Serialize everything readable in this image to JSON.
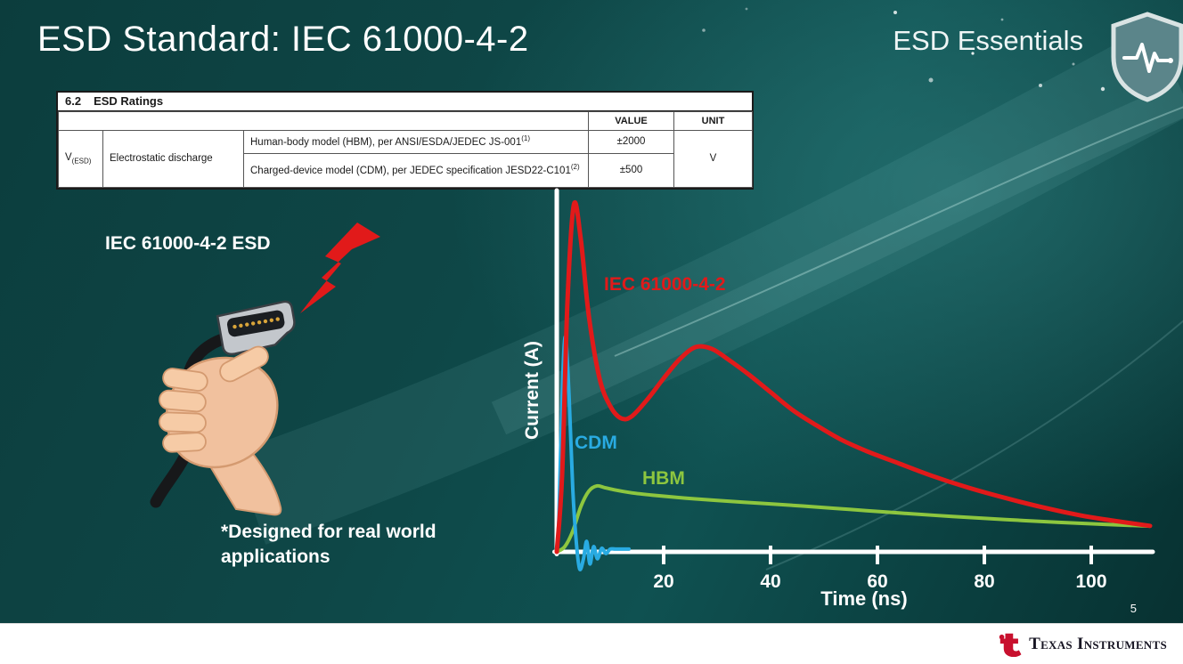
{
  "slide": {
    "title": "ESD Standard: IEC 61000-4-2",
    "program": "ESD Essentials",
    "page_number": "5"
  },
  "ratings_table": {
    "section_number": "6.2",
    "section_title": "ESD Ratings",
    "col_value": "VALUE",
    "col_unit": "UNIT",
    "param_symbol": "V",
    "param_subscript": "(ESD)",
    "param_name": "Electrostatic discharge",
    "rows": [
      {
        "description": "Human-body model (HBM), per ANSI/ESDA/JEDEC JS-001",
        "ref": "(1)",
        "value": "±2000"
      },
      {
        "description": "Charged-device model (CDM), per JEDEC specification JESD22-C101",
        "ref": "(2)",
        "value": "±500"
      }
    ],
    "unit": "V"
  },
  "illustration": {
    "label": "IEC 61000-4-2 ESD",
    "footnote": "*Designed for real world applications"
  },
  "chart_data": {
    "type": "line",
    "title": "",
    "xlabel": "Time (ns)",
    "ylabel": "Current (A)",
    "xlim": [
      0,
      112
    ],
    "ylim": [
      -0.08,
      1.05
    ],
    "xticks": [
      20,
      40,
      60,
      80,
      100
    ],
    "yticks": [],
    "grid": false,
    "legend": "inline-labels",
    "axis_color": "#ffffff",
    "series": [
      {
        "name": "IEC 61000-4-2",
        "color": "#e11a1a",
        "points": [
          [
            0,
            0
          ],
          [
            1,
            0.22
          ],
          [
            2,
            0.72
          ],
          [
            3.2,
            1.0
          ],
          [
            4.5,
            0.9
          ],
          [
            6,
            0.68
          ],
          [
            8,
            0.5
          ],
          [
            10,
            0.42
          ],
          [
            12,
            0.385
          ],
          [
            14,
            0.39
          ],
          [
            17,
            0.44
          ],
          [
            20,
            0.5
          ],
          [
            23,
            0.555
          ],
          [
            26,
            0.59
          ],
          [
            29,
            0.585
          ],
          [
            32,
            0.555
          ],
          [
            36,
            0.51
          ],
          [
            40,
            0.46
          ],
          [
            44,
            0.41
          ],
          [
            48,
            0.37
          ],
          [
            53,
            0.325
          ],
          [
            58,
            0.29
          ],
          [
            64,
            0.255
          ],
          [
            70,
            0.22
          ],
          [
            77,
            0.185
          ],
          [
            84,
            0.155
          ],
          [
            91,
            0.128
          ],
          [
            98,
            0.105
          ],
          [
            104,
            0.09
          ],
          [
            111,
            0.075
          ]
        ]
      },
      {
        "name": "CDM",
        "color": "#29abe2",
        "points": [
          [
            0,
            0
          ],
          [
            0.4,
            0.1
          ],
          [
            1,
            0.45
          ],
          [
            1.6,
            0.62
          ],
          [
            2.3,
            0.45
          ],
          [
            3,
            0.18
          ],
          [
            3.7,
            0.02
          ],
          [
            4.3,
            -0.05
          ],
          [
            5,
            -0.02
          ],
          [
            5.6,
            0.03
          ],
          [
            6.2,
            -0.035
          ],
          [
            6.9,
            0.015
          ],
          [
            7.6,
            -0.02
          ],
          [
            8.4,
            0.01
          ],
          [
            9.2,
            -0.005
          ],
          [
            10,
            0.008
          ],
          [
            11,
            0.008
          ],
          [
            13.5,
            0.008
          ]
        ]
      },
      {
        "name": "HBM",
        "color": "#8dc63f",
        "points": [
          [
            0,
            0
          ],
          [
            1.5,
            0.015
          ],
          [
            3,
            0.06
          ],
          [
            4.5,
            0.13
          ],
          [
            6,
            0.175
          ],
          [
            7.5,
            0.19
          ],
          [
            9,
            0.185
          ],
          [
            11,
            0.178
          ],
          [
            14,
            0.17
          ],
          [
            18,
            0.163
          ],
          [
            24,
            0.155
          ],
          [
            30,
            0.148
          ],
          [
            38,
            0.14
          ],
          [
            46,
            0.132
          ],
          [
            55,
            0.122
          ],
          [
            64,
            0.112
          ],
          [
            74,
            0.102
          ],
          [
            84,
            0.093
          ],
          [
            94,
            0.085
          ],
          [
            103,
            0.079
          ],
          [
            111,
            0.074
          ]
        ]
      }
    ]
  },
  "footer": {
    "logo_text": "ti",
    "brand": "Texas Instruments"
  },
  "colors": {
    "background_teal": "#0e4747",
    "footer_bg": "#ffffff",
    "ti_red": "#c8102e",
    "text_white": "#ffffff"
  }
}
